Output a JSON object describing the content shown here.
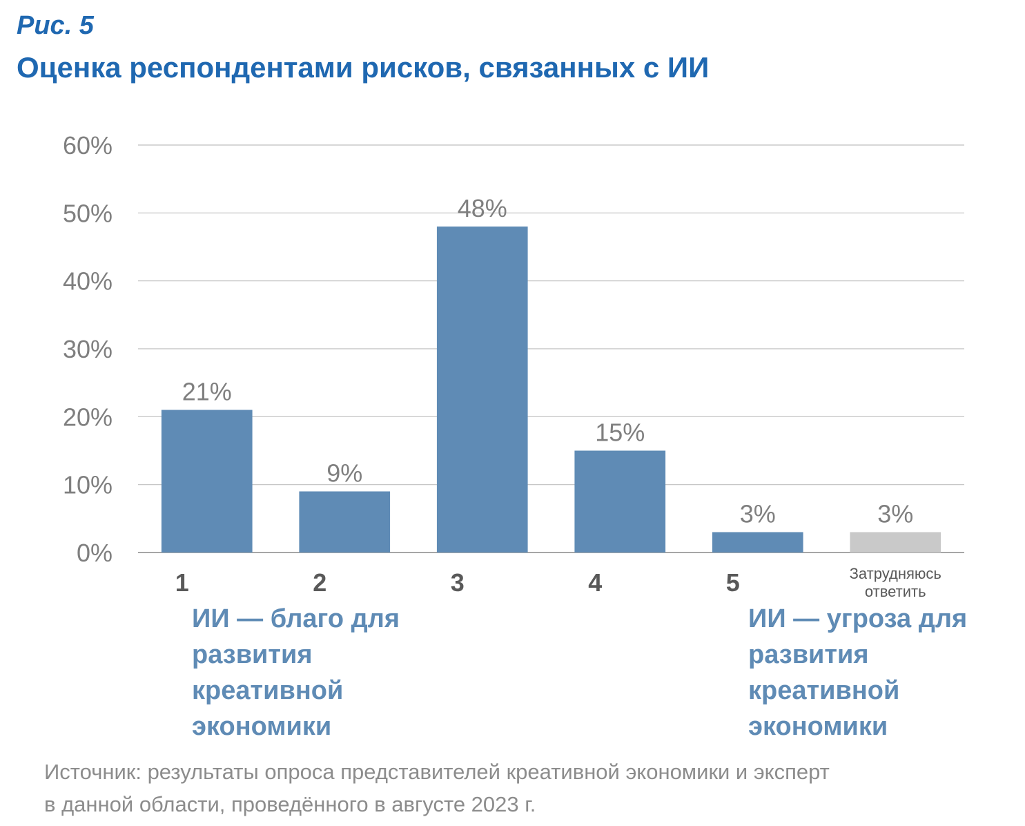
{
  "figure": {
    "label": "Рис. 5",
    "title": "Оценка респондентами рисков, связанных с ИИ"
  },
  "chart_data": {
    "type": "bar",
    "title": "",
    "xlabel": "",
    "ylabel": "",
    "ylim": [
      0,
      60
    ],
    "yticks": [
      "0%",
      "10%",
      "20%",
      "30%",
      "40%",
      "50%",
      "60%"
    ],
    "grid": true,
    "categories": [
      "1",
      "2",
      "3",
      "4",
      "5",
      "Затрудняюсь ответить"
    ],
    "values": [
      21,
      9,
      48,
      15,
      3,
      3
    ],
    "data_labels": [
      "21%",
      "9%",
      "48%",
      "15%",
      "3%",
      "3%"
    ],
    "colors": [
      "#5f8bb5",
      "#5f8bb5",
      "#5f8bb5",
      "#5f8bb5",
      "#5f8bb5",
      "#c9c9c9"
    ]
  },
  "scale_poles": {
    "left": "ИИ — благо для развития креативной экономики",
    "right": "ИИ — угроза для развития креативной экономики"
  },
  "source": "Источник:  результаты опроса представителей креативной экономики и эксперт\nв данной области, проведённого в августе 2023 г."
}
